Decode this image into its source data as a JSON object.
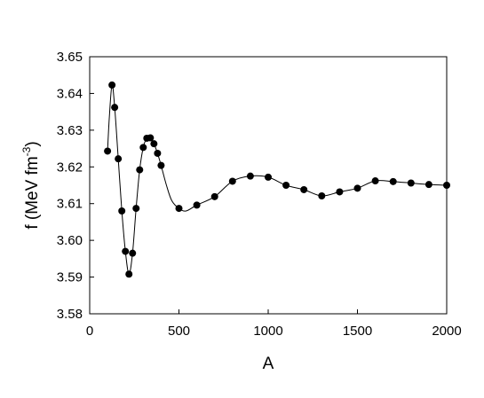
{
  "chart_data": {
    "type": "line",
    "xlabel": "A",
    "ylabel": "f (MeV fm",
    "ylabel_sup": "-3",
    "ylabel_close": ")",
    "xlim": [
      0,
      2000
    ],
    "ylim": [
      3.58,
      3.65
    ],
    "xticks": [
      0,
      500,
      1000,
      1500,
      2000
    ],
    "yticks": [
      "3.58",
      "3.59",
      "3.60",
      "3.61",
      "3.62",
      "3.63",
      "3.64",
      "3.65"
    ],
    "grid": false,
    "series": [
      {
        "marker": "filled-circle",
        "color": "#000000",
        "points": [
          [
            100,
            3.6243
          ],
          [
            125,
            3.6423
          ],
          [
            140,
            3.6362
          ],
          [
            160,
            3.6222
          ],
          [
            180,
            3.608
          ],
          [
            200,
            3.597
          ],
          [
            220,
            3.5908
          ],
          [
            240,
            3.5965
          ],
          [
            260,
            3.6087
          ],
          [
            280,
            3.6192
          ],
          [
            300,
            3.6253
          ],
          [
            320,
            3.6278
          ],
          [
            340,
            3.6279
          ],
          [
            360,
            3.6263
          ],
          [
            380,
            3.6237
          ],
          [
            400,
            3.6204
          ],
          [
            500,
            3.6087
          ],
          [
            600,
            3.6096
          ],
          [
            700,
            3.6119
          ],
          [
            800,
            3.6161
          ],
          [
            900,
            3.6175
          ],
          [
            1000,
            3.6172
          ],
          [
            1100,
            3.615
          ],
          [
            1200,
            3.6138
          ],
          [
            1300,
            3.6121
          ],
          [
            1400,
            3.6132
          ],
          [
            1500,
            3.6142
          ],
          [
            1600,
            3.6162
          ],
          [
            1700,
            3.616
          ],
          [
            1800,
            3.6156
          ],
          [
            1900,
            3.6152
          ],
          [
            2000,
            3.615
          ]
        ],
        "curve_points": [
          [
            100,
            3.6243
          ],
          [
            110,
            3.6335
          ],
          [
            125,
            3.6423
          ],
          [
            140,
            3.6362
          ],
          [
            160,
            3.6222
          ],
          [
            180,
            3.608
          ],
          [
            200,
            3.597
          ],
          [
            220,
            3.5908
          ],
          [
            240,
            3.5965
          ],
          [
            260,
            3.6087
          ],
          [
            280,
            3.6192
          ],
          [
            300,
            3.6253
          ],
          [
            320,
            3.6278
          ],
          [
            340,
            3.6279
          ],
          [
            360,
            3.6263
          ],
          [
            380,
            3.6237
          ],
          [
            400,
            3.6204
          ],
          [
            430,
            3.615
          ],
          [
            460,
            3.6108
          ],
          [
            500,
            3.6087
          ],
          [
            540,
            3.608
          ],
          [
            600,
            3.6096
          ],
          [
            700,
            3.6119
          ],
          [
            800,
            3.6161
          ],
          [
            900,
            3.6175
          ],
          [
            1000,
            3.6172
          ],
          [
            1100,
            3.615
          ],
          [
            1200,
            3.6138
          ],
          [
            1300,
            3.6121
          ],
          [
            1400,
            3.6132
          ],
          [
            1500,
            3.6142
          ],
          [
            1600,
            3.6162
          ],
          [
            1700,
            3.616
          ],
          [
            1800,
            3.6156
          ],
          [
            1900,
            3.6152
          ],
          [
            2000,
            3.615
          ]
        ]
      }
    ]
  }
}
